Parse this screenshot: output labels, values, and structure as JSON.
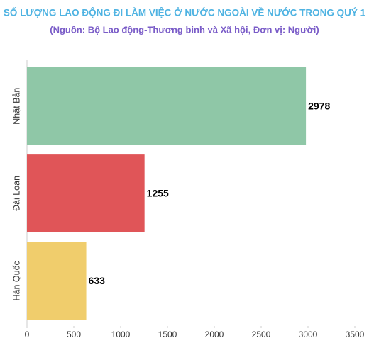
{
  "chart_data": {
    "type": "barh",
    "title": "SỐ LƯỢNG LAO ĐỘNG ĐI LÀM VIỆC Ở NƯỚC NGOÀI VỀ NƯỚC TRONG QUÝ 1",
    "subtitle": "(Nguồn:  Bộ Lao động-Thương binh và Xã hội, Đơn vị: Người)",
    "categories": [
      "Nhật Bản",
      "Đài Loan",
      "Hàn Quốc"
    ],
    "values": [
      2978,
      1255,
      633
    ],
    "colors": [
      "#8fc7a7",
      "#e05558",
      "#f0cd6c"
    ],
    "xlim": [
      0,
      3500
    ],
    "xticks": [
      0,
      500,
      1000,
      1500,
      2000,
      2500,
      3000,
      3500
    ]
  }
}
